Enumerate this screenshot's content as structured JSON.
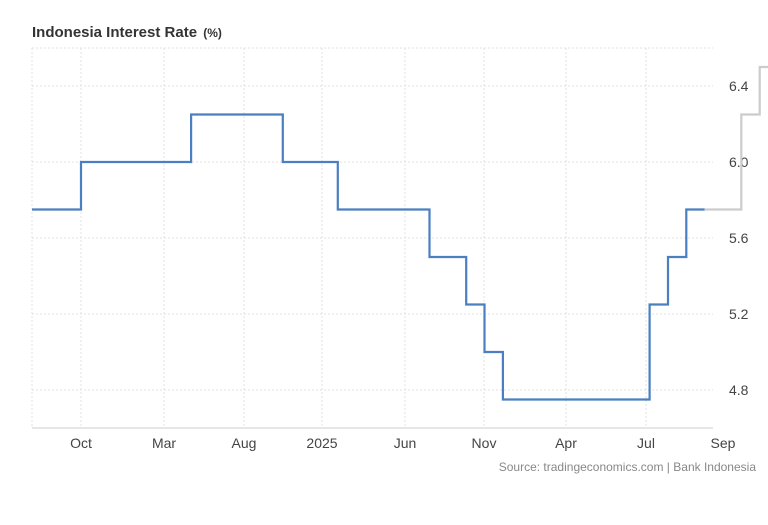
{
  "chart_data": {
    "type": "line",
    "title": "Indonesia Interest Rate",
    "unit": "(%)",
    "source": "Source: tradingeconomics.com | Bank Indonesia",
    "x_tick_labels": [
      "Oct",
      "Mar",
      "Aug",
      "2025",
      "Jun",
      "Nov",
      "Apr",
      "Jul",
      "Sep"
    ],
    "y_ticks": [
      "4.8",
      "5.2",
      "5.6",
      "6.0",
      "6.4"
    ],
    "ylim": [
      4.6,
      6.6
    ],
    "grid": true,
    "series": [
      {
        "name": "",
        "role": "actual",
        "color": "#4a7fc1",
        "step": true,
        "points": [
          {
            "x": "2023-07",
            "y": 5.75
          },
          {
            "x": "2023-10",
            "y": 6.0
          },
          {
            "x": "2024-04",
            "y": 6.25
          },
          {
            "x": "2024-09",
            "y": 6.0
          },
          {
            "x": "2024-12",
            "y": 5.75
          },
          {
            "x": "2025-05",
            "y": 5.5
          },
          {
            "x": "2025-07",
            "y": 5.25
          },
          {
            "x": "2025-08",
            "y": 5.0
          },
          {
            "x": "2025-09",
            "y": 4.75
          },
          {
            "x": "2026-05",
            "y": 5.25
          },
          {
            "x": "2026-06",
            "y": 5.5
          },
          {
            "x": "2026-07",
            "y": 5.75
          },
          {
            "x": "2026-08",
            "y": 5.75
          }
        ]
      },
      {
        "name": "",
        "role": "forecast",
        "color": "#cccccc",
        "step": true,
        "points": [
          {
            "x": "2026-08",
            "y": 5.75
          },
          {
            "x": "2026-10",
            "y": 6.25
          },
          {
            "x": "2026-11",
            "y": 6.5
          },
          {
            "x": "2027-01",
            "y": 6.5
          }
        ]
      }
    ]
  }
}
